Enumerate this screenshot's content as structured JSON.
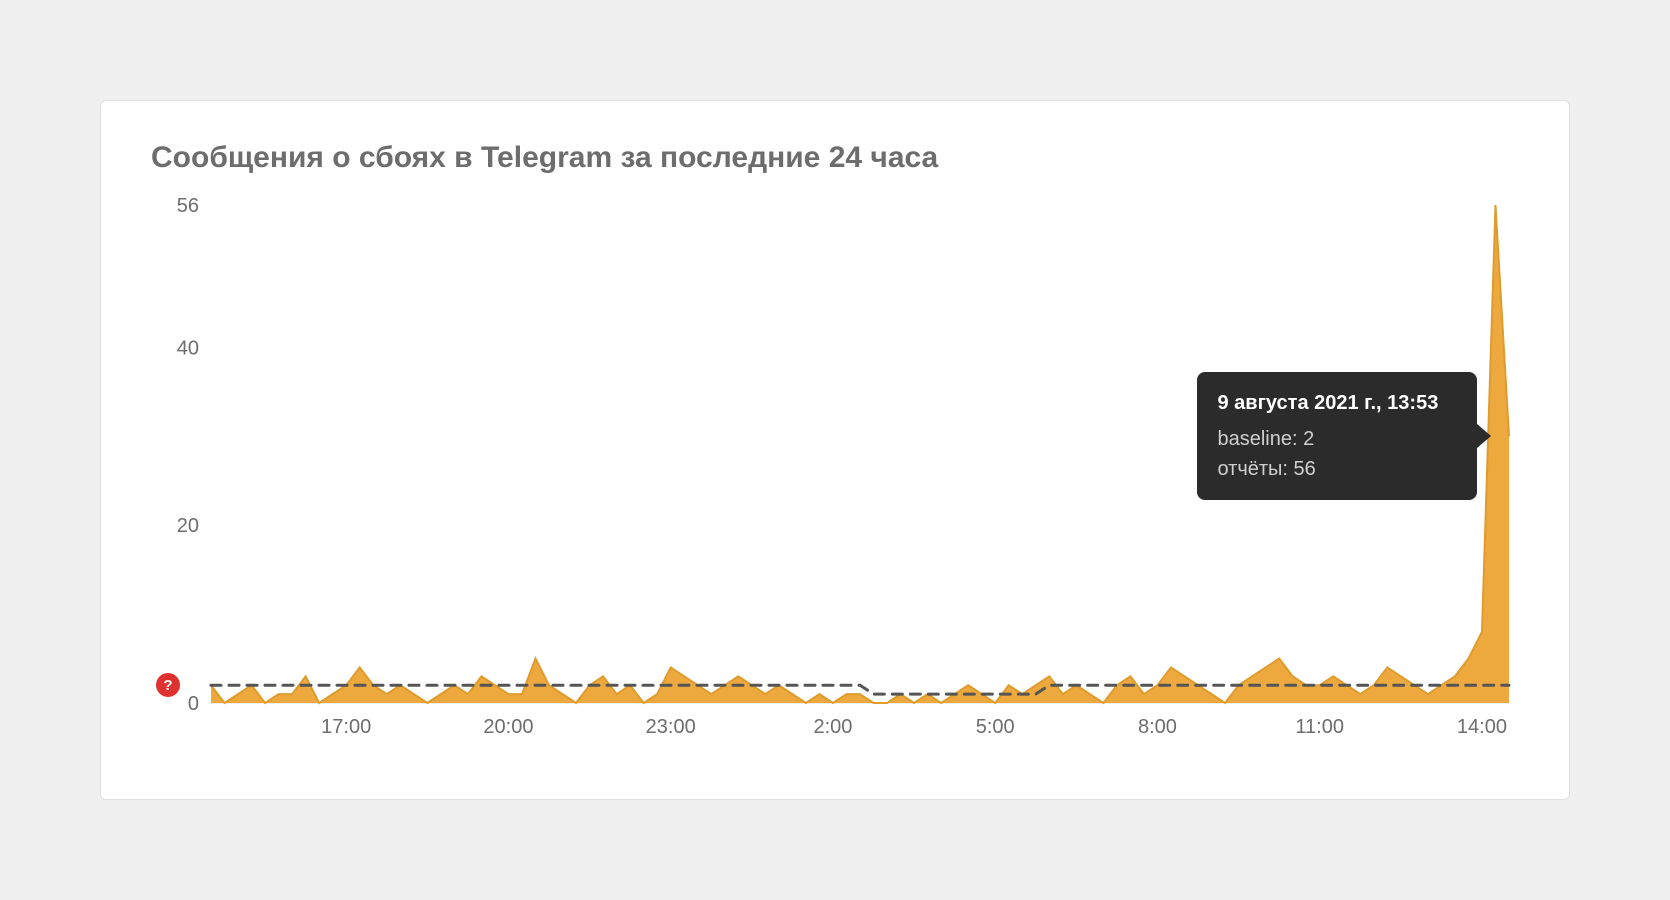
{
  "page": {
    "background": "#f0f0f0"
  },
  "card": {
    "background": "#ffffff",
    "border_color": "#e1e1e1",
    "border_radius": 6
  },
  "chart": {
    "type": "area",
    "title": "Сообщения о сбоях в Telegram за последние 24 часа",
    "title_color": "#6d6d6d",
    "title_fontsize": 30,
    "axis_label_color": "#6d6d6d",
    "axis_label_fontsize": 20,
    "axis_line_color": "#dddddd",
    "ylim": [
      0,
      56
    ],
    "yticks": [
      0,
      20,
      40,
      56
    ],
    "x_start_minutes": 870,
    "x_step_minutes": 15,
    "xticks_minutes": [
      1020,
      1200,
      1380,
      120,
      300,
      480,
      660,
      840
    ],
    "xtick_labels": [
      "17:00",
      "20:00",
      "23:00",
      "2:00",
      "5:00",
      "8:00",
      "11:00",
      "14:00"
    ],
    "series": {
      "reports": {
        "label": "отчёты",
        "fill_color": "#eda93e",
        "fill_opacity": 1.0,
        "line_color": "#e09b2d",
        "line_width": 2,
        "values": [
          2,
          0,
          1,
          2,
          0,
          1,
          1,
          3,
          0,
          1,
          2,
          4,
          2,
          1,
          2,
          1,
          0,
          1,
          2,
          1,
          3,
          2,
          1,
          1,
          5,
          2,
          1,
          0,
          2,
          3,
          1,
          2,
          0,
          1,
          4,
          3,
          2,
          1,
          2,
          3,
          2,
          1,
          2,
          1,
          0,
          1,
          0,
          1,
          1,
          0,
          0,
          1,
          0,
          1,
          0,
          1,
          2,
          1,
          0,
          2,
          1,
          2,
          3,
          1,
          2,
          1,
          0,
          2,
          3,
          1,
          2,
          4,
          3,
          2,
          1,
          0,
          2,
          3,
          4,
          5,
          3,
          2,
          2,
          3,
          2,
          1,
          2,
          4,
          3,
          2,
          1,
          2,
          3,
          5,
          8,
          56,
          30
        ]
      },
      "baseline": {
        "label": "baseline",
        "color": "#555555",
        "dash": "10,8",
        "line_width": 3,
        "values": [
          2,
          2,
          2,
          2,
          2,
          2,
          2,
          2,
          2,
          2,
          2,
          2,
          2,
          2,
          2,
          2,
          2,
          2,
          2,
          2,
          2,
          2,
          2,
          2,
          2,
          2,
          2,
          2,
          2,
          2,
          2,
          2,
          2,
          2,
          2,
          2,
          2,
          2,
          2,
          2,
          2,
          2,
          2,
          2,
          2,
          2,
          2,
          2,
          2,
          1,
          1,
          1,
          1,
          1,
          1,
          1,
          1,
          1,
          1,
          1,
          1,
          1,
          2,
          2,
          2,
          2,
          2,
          2,
          2,
          2,
          2,
          2,
          2,
          2,
          2,
          2,
          2,
          2,
          2,
          2,
          2,
          2,
          2,
          2,
          2,
          2,
          2,
          2,
          2,
          2,
          2,
          2,
          2,
          2,
          2,
          2,
          2
        ]
      }
    },
    "help_badge": {
      "text": "?",
      "bg": "#e03131",
      "fg": "#ffffff"
    },
    "tooltip": {
      "bg": "#2b2b2b",
      "fg": "#ffffff",
      "muted": "#cfcfcf",
      "title": "9 августа 2021 г., 13:53",
      "lines": [
        "baseline: 2",
        "отчёты: 56"
      ],
      "point_index": 95
    }
  }
}
